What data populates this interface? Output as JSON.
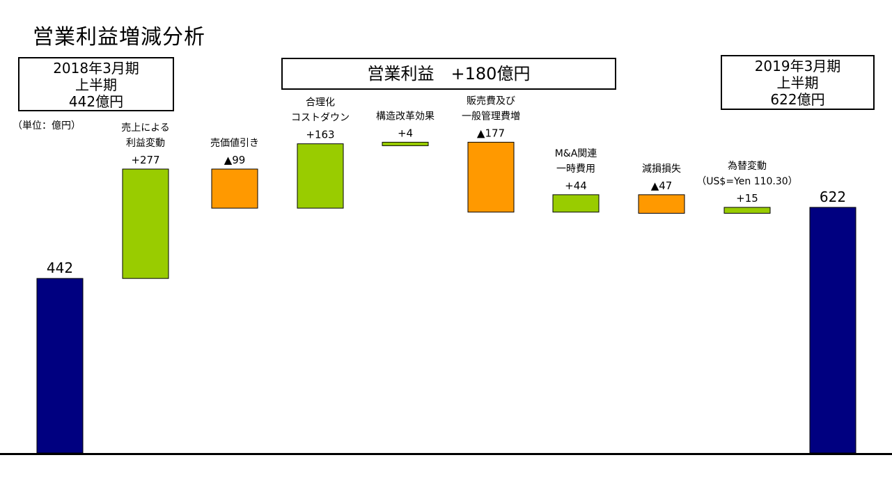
{
  "title": "営業利益増減分析",
  "unit_note": "（単位：億円）",
  "start_box": {
    "period": "2018年3月期",
    "half": "上半期",
    "value": "442億円"
  },
  "end_box": {
    "period": "2019年3月期",
    "half": "上半期",
    "value": "622億円"
  },
  "center_box": "営業利益　+180億円",
  "colors": {
    "total": "#000080",
    "increase": "#99cc00",
    "decrease": "#ff9900",
    "border": "#000000"
  },
  "chart_data": {
    "type": "bar",
    "subtype": "waterfall",
    "items": [
      {
        "label_lines": [],
        "value_label": "442",
        "kind": "total",
        "value": 442
      },
      {
        "label_lines": [
          "売上による",
          "利益変動"
        ],
        "value_label": "+277",
        "kind": "increase",
        "value": 277
      },
      {
        "label_lines": [
          "売価値引き"
        ],
        "value_label": "▲99",
        "kind": "decrease",
        "value": -99
      },
      {
        "label_lines": [
          "合理化",
          "コストダウン"
        ],
        "value_label": "+163",
        "kind": "increase",
        "value": 163
      },
      {
        "label_lines": [
          "構造改革効果"
        ],
        "value_label": "+4",
        "kind": "increase",
        "value": 4
      },
      {
        "label_lines": [
          "販売費及び",
          "一般管理費増"
        ],
        "value_label": "▲177",
        "kind": "decrease",
        "value": -177
      },
      {
        "label_lines": [
          "M&A関連",
          "一時費用"
        ],
        "value_label": "+44",
        "kind": "increase",
        "value": 44
      },
      {
        "label_lines": [
          "減損損失"
        ],
        "value_label": "▲47",
        "kind": "decrease",
        "value": -47
      },
      {
        "label_lines": [
          "為替変動",
          "（US$=Yen 110.30）"
        ],
        "value_label": "+15",
        "kind": "increase",
        "value": 15
      },
      {
        "label_lines": [],
        "value_label": "622",
        "kind": "total",
        "value": 622
      }
    ]
  }
}
